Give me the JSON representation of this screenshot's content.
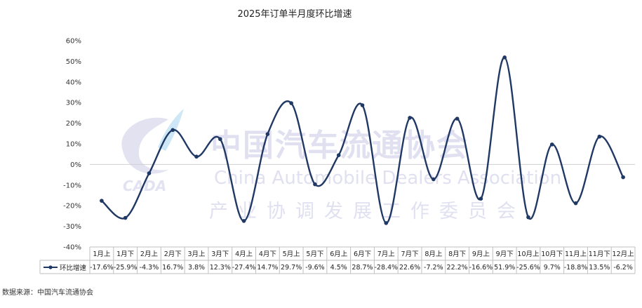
{
  "chart_data": {
    "type": "line",
    "title": "2025年订单半月度环比增速",
    "categories": [
      "1月上",
      "1月下",
      "2月上",
      "2月下",
      "3月上",
      "3月下",
      "4月上",
      "4月下",
      "5月上",
      "5月下",
      "6月上",
      "6月下",
      "7月上",
      "7月下",
      "8月上",
      "8月下",
      "9月上",
      "9月下",
      "10月上",
      "10月下",
      "11月上",
      "11月下",
      "12月上"
    ],
    "series": [
      {
        "name": "环比增速",
        "values": [
          -17.6,
          -25.9,
          -4.3,
          16.7,
          3.8,
          12.3,
          -27.4,
          14.7,
          29.7,
          -9.6,
          4.5,
          28.7,
          -28.4,
          22.6,
          -7.2,
          22.2,
          -16.6,
          51.9,
          -25.6,
          9.7,
          -18.8,
          13.5,
          -6.2
        ]
      }
    ],
    "value_labels": [
      "-17.6%",
      "-25.9%",
      "-4.3%",
      "16.7%",
      "3.8%",
      "12.3%",
      "-27.4%",
      "14.7%",
      "29.7%",
      "-9.6%",
      "4.5%",
      "28.7%",
      "-28.4%",
      "22.6%",
      "-7.2%",
      "22.2%",
      "-16.6%",
      "51.9%",
      "-25.6%",
      "9.7%",
      "-18.8%",
      "13.5%",
      "-6.2%"
    ],
    "ylim": [
      -40,
      60
    ],
    "yticks": [
      "60%",
      "50%",
      "40%",
      "30%",
      "20%",
      "10%",
      "0%",
      "-10%",
      "-20%",
      "-30%",
      "-40%"
    ],
    "ytick_values": [
      60,
      50,
      40,
      30,
      20,
      10,
      0,
      -10,
      -20,
      -30,
      -40
    ],
    "smooth": true,
    "grid": false,
    "legend": "data-table-left",
    "line_color": "#1f3864",
    "xlabel": "",
    "ylabel": ""
  },
  "watermark": {
    "logo_text": "CADA",
    "cn": "中国汽车流通协会",
    "en": "China Automobile Dealers Association",
    "sub": "产业协调发展工作委员会"
  },
  "source": "数据来源：中国汽车流通协会"
}
